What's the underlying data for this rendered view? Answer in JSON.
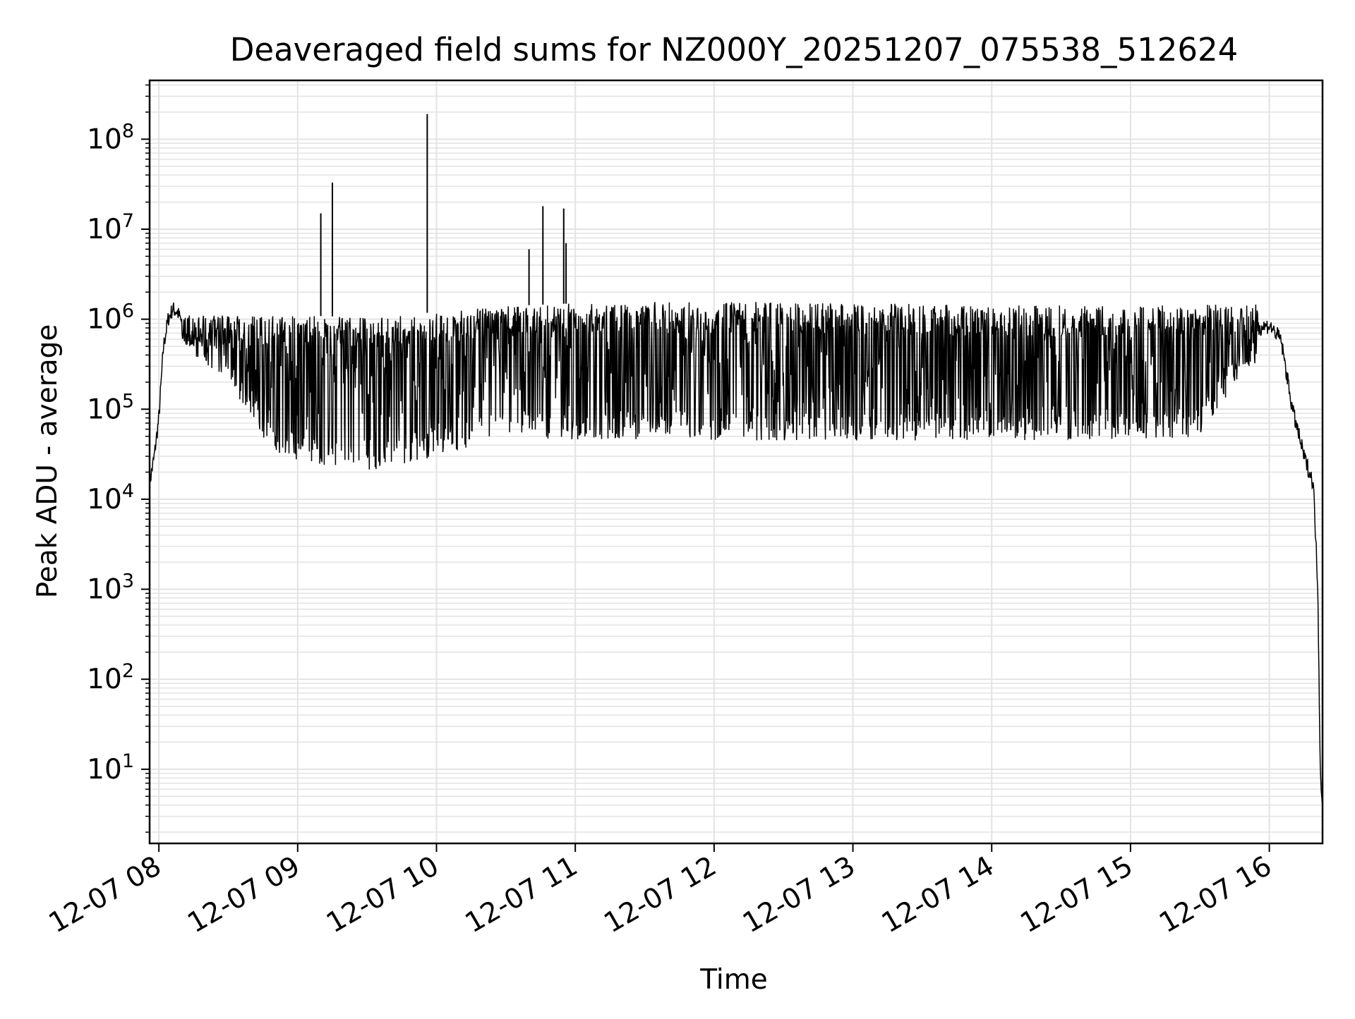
{
  "chart_data": {
    "type": "line",
    "title": "Deaveraged field sums for NZ000Y_20251207_075538_512624",
    "xlabel": "Time",
    "ylabel": "Peak ADU - average",
    "yscale": "log",
    "grid": true,
    "legend": "none",
    "line_color": "#000000",
    "grid_color": "#e3e3e3",
    "xlim": [
      "2025-12-07 07:56",
      "2025-12-07 16:23"
    ],
    "ylim": [
      1.5,
      450000000
    ],
    "x_ticks": [
      "12-07 08",
      "12-07 09",
      "12-07 10",
      "12-07 11",
      "12-07 12",
      "12-07 13",
      "12-07 14",
      "12-07 15",
      "12-07 16"
    ],
    "y_ticks": [
      {
        "base": "10",
        "exp": "1",
        "value": 10
      },
      {
        "base": "10",
        "exp": "2",
        "value": 100
      },
      {
        "base": "10",
        "exp": "3",
        "value": 1000
      },
      {
        "base": "10",
        "exp": "4",
        "value": 10000
      },
      {
        "base": "10",
        "exp": "5",
        "value": 100000
      },
      {
        "base": "10",
        "exp": "6",
        "value": 1000000
      },
      {
        "base": "10",
        "exp": "7",
        "value": 10000000
      },
      {
        "base": "10",
        "exp": "8",
        "value": 100000000
      }
    ],
    "series": [
      {
        "points": [
          [
            "2025-12-07 07:56",
            15000
          ],
          [
            "2025-12-07 07:58",
            30000
          ],
          [
            "2025-12-07 08:00",
            80000
          ],
          [
            "2025-12-07 08:02",
            500000
          ],
          [
            "2025-12-07 08:04",
            1000000
          ],
          [
            "2025-12-07 08:06",
            1300000
          ],
          [
            "2025-12-07 08:08",
            1200000
          ],
          [
            "2025-12-07 08:12",
            700000
          ],
          [
            "2025-12-07 08:20",
            550000
          ],
          [
            "2025-12-07 08:30",
            300000
          ],
          [
            "2025-12-07 08:40",
            150000
          ],
          [
            "2025-12-07 08:45",
            70000
          ],
          [
            "2025-12-07 08:50",
            40000
          ],
          [
            "2025-12-07 09:00",
            30000
          ],
          [
            "2025-12-07 09:10",
            25000
          ],
          [
            "2025-12-07 09:15",
            500000
          ],
          [
            "2025-12-07 09:18",
            60000
          ],
          [
            "2025-12-07 09:30",
            25000
          ],
          [
            "2025-12-07 09:45",
            25000
          ],
          [
            "2025-12-07 10:00",
            35000
          ],
          [
            "2025-12-07 10:15",
            50000
          ],
          [
            "2025-12-07 10:30",
            100000
          ],
          [
            "2025-12-07 10:45",
            300000
          ],
          [
            "2025-12-07 11:00",
            200000
          ],
          [
            "2025-12-07 12:00",
            200000
          ],
          [
            "2025-12-07 13:00",
            180000
          ],
          [
            "2025-12-07 14:00",
            170000
          ],
          [
            "2025-12-07 15:00",
            170000
          ],
          [
            "2025-12-07 15:30",
            200000
          ],
          [
            "2025-12-07 15:45",
            400000
          ],
          [
            "2025-12-07 15:55",
            800000
          ],
          [
            "2025-12-07 16:00",
            850000
          ],
          [
            "2025-12-07 16:05",
            600000
          ],
          [
            "2025-12-07 16:10",
            100000
          ],
          [
            "2025-12-07 16:15",
            30000
          ],
          [
            "2025-12-07 16:19",
            15000
          ],
          [
            "2025-12-07 16:21",
            1000
          ],
          [
            "2025-12-07 16:22",
            10
          ],
          [
            "2025-12-07 16:23",
            4
          ]
        ],
        "upper_envelope": [
          [
            "2025-12-07 08:10",
            1100000
          ],
          [
            "2025-12-07 08:30",
            1100000
          ],
          [
            "2025-12-07 09:00",
            1100000
          ],
          [
            "2025-12-07 09:30",
            1050000
          ],
          [
            "2025-12-07 10:00",
            1200000
          ],
          [
            "2025-12-07 10:30",
            1400000
          ],
          [
            "2025-12-07 11:00",
            1500000
          ],
          [
            "2025-12-07 12:00",
            1600000
          ],
          [
            "2025-12-07 13:00",
            1500000
          ],
          [
            "2025-12-07 14:00",
            1450000
          ],
          [
            "2025-12-07 15:00",
            1400000
          ],
          [
            "2025-12-07 15:55",
            1500000
          ]
        ],
        "lower_envelope": [
          [
            "2025-12-07 08:10",
            500000
          ],
          [
            "2025-12-07 08:30",
            200000
          ],
          [
            "2025-12-07 08:50",
            30000
          ],
          [
            "2025-12-07 09:30",
            20000
          ],
          [
            "2025-12-07 10:00",
            30000
          ],
          [
            "2025-12-07 10:30",
            50000
          ],
          [
            "2025-12-07 11:00",
            45000
          ],
          [
            "2025-12-07 12:00",
            45000
          ],
          [
            "2025-12-07 13:00",
            45000
          ],
          [
            "2025-12-07 14:00",
            45000
          ],
          [
            "2025-12-07 15:00",
            45000
          ],
          [
            "2025-12-07 15:30",
            50000
          ],
          [
            "2025-12-07 15:50",
            300000
          ]
        ],
        "spikes": [
          [
            "2025-12-07 09:10",
            15000000
          ],
          [
            "2025-12-07 09:15",
            33000000
          ],
          [
            "2025-12-07 09:56",
            190000000
          ],
          [
            "2025-12-07 10:40",
            6000000
          ],
          [
            "2025-12-07 10:46",
            18000000
          ],
          [
            "2025-12-07 10:55",
            17000000
          ],
          [
            "2025-12-07 10:56",
            7000000
          ]
        ]
      }
    ]
  }
}
